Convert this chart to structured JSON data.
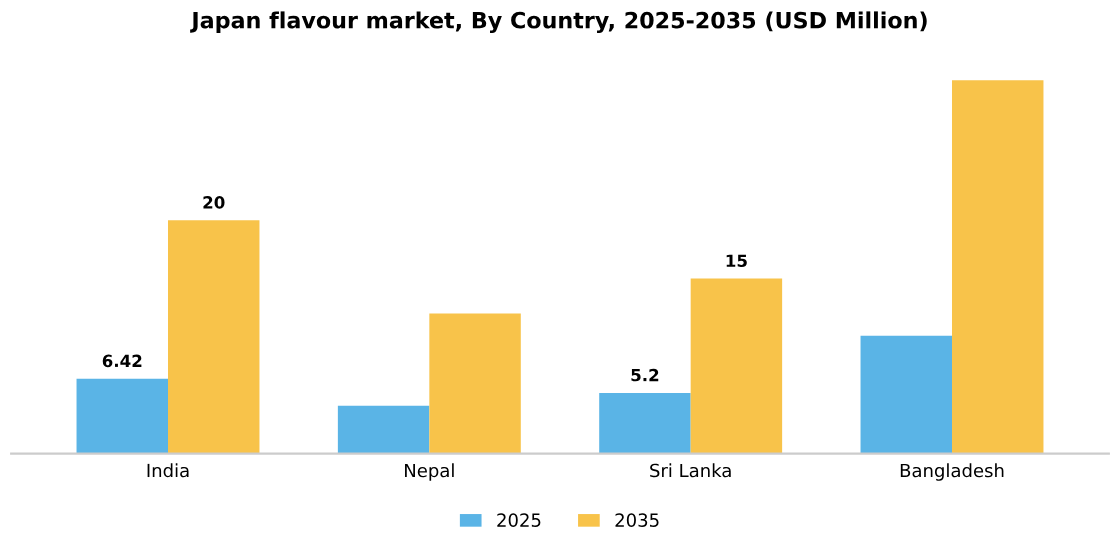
{
  "chart_data": {
    "type": "bar",
    "title": "Japan flavour market, By Country, 2025-2035 (USD Million)",
    "categories": [
      "India",
      "Nepal",
      "Sri Lanka",
      "Bangladesh"
    ],
    "series": [
      {
        "name": "2025",
        "color": "#5ab4e6",
        "values": [
          6.42,
          4.1,
          5.2,
          10.1
        ],
        "value_labels": [
          "6.42",
          null,
          "5.2",
          null
        ]
      },
      {
        "name": "2035",
        "color": "#f8c34a",
        "values": [
          20,
          12,
          15,
          32
        ],
        "value_labels": [
          "20",
          null,
          "15",
          null
        ]
      }
    ],
    "legend": "bottom"
  }
}
